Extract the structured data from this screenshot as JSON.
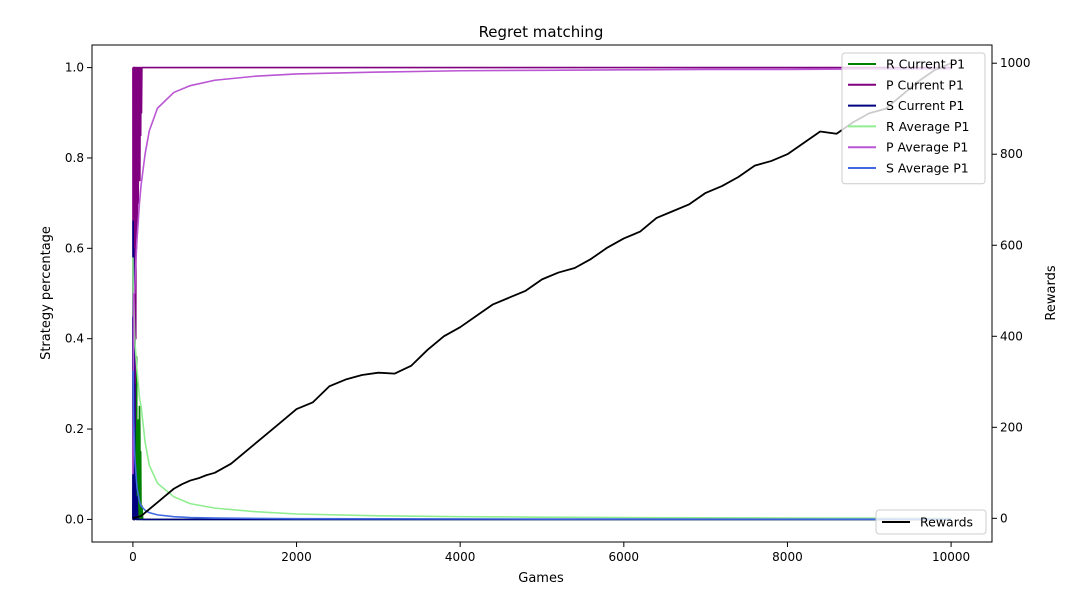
{
  "chart_data": {
    "type": "line",
    "title": "Regret matching",
    "xlabel": "Games",
    "ylabel_left": "Strategy percentage",
    "ylabel_right": "Rewards",
    "xlim": [
      -500,
      10500
    ],
    "ylim_left": [
      -0.05,
      1.05
    ],
    "ylim_right": [
      -52,
      1040
    ],
    "x_ticks": [
      0,
      2000,
      4000,
      6000,
      8000,
      10000
    ],
    "y_left_ticks": [
      0.0,
      0.2,
      0.4,
      0.6,
      0.8,
      1.0
    ],
    "y_right_ticks": [
      0,
      200,
      400,
      600,
      800,
      1000
    ],
    "grid": false,
    "legend_left_axis": "top-right",
    "legend_right_axis": "bottom-right",
    "series": [
      {
        "name": "R Current P1",
        "axis": "left",
        "color": "#008000",
        "x": [
          0,
          5,
          10,
          15,
          20,
          25,
          30,
          35,
          40,
          45,
          50,
          55,
          60,
          65,
          70,
          75,
          80,
          85,
          90,
          95,
          100,
          110,
          120,
          140,
          200,
          500,
          1000,
          10000
        ],
        "y": [
          0,
          0.12,
          0.0,
          0.2,
          0.0,
          0.33,
          0.05,
          0.18,
          0.0,
          0.36,
          0.0,
          0.2,
          0.0,
          0.22,
          0.1,
          0.0,
          0.25,
          0.2,
          0.0,
          0.15,
          0.0,
          0.03,
          0.0,
          0.0,
          0.0,
          0.0,
          0.0,
          0.0
        ]
      },
      {
        "name": "P Current P1",
        "axis": "left",
        "color": "#800080",
        "x": [
          0,
          3,
          6,
          9,
          12,
          15,
          18,
          21,
          24,
          27,
          30,
          35,
          40,
          45,
          50,
          55,
          60,
          65,
          70,
          75,
          80,
          85,
          90,
          95,
          100,
          105,
          110,
          120,
          200,
          1000,
          10000
        ],
        "y": [
          1.0,
          0.0,
          1.0,
          0.0,
          1.0,
          0.3,
          1.0,
          0.0,
          1.0,
          0.2,
          1.0,
          0.4,
          1.0,
          0.6,
          1.0,
          0.64,
          1.0,
          0.7,
          1.0,
          0.8,
          1.0,
          0.75,
          1.0,
          0.85,
          1.0,
          0.9,
          1.0,
          1.0,
          1.0,
          1.0,
          1.0
        ]
      },
      {
        "name": "S Current P1",
        "axis": "left",
        "color": "#000080",
        "x": [
          0,
          3,
          6,
          9,
          12,
          15,
          18,
          21,
          24,
          30,
          40,
          50,
          60,
          80,
          100,
          1000,
          10000
        ],
        "y": [
          0.0,
          0.66,
          0.0,
          0.6,
          0.0,
          0.45,
          0.0,
          0.3,
          0.0,
          0.12,
          0.0,
          0.05,
          0.0,
          0.0,
          0.0,
          0.0,
          0.0
        ]
      },
      {
        "name": "R Average P1",
        "axis": "left",
        "color": "#90EE90",
        "x": [
          0,
          5,
          10,
          20,
          30,
          50,
          80,
          100,
          150,
          200,
          300,
          500,
          700,
          1000,
          1500,
          2000,
          3000,
          4000,
          5000,
          6000,
          7000,
          8000,
          9000,
          10000
        ],
        "y": [
          0.58,
          0.45,
          0.5,
          0.41,
          0.38,
          0.33,
          0.27,
          0.25,
          0.17,
          0.12,
          0.08,
          0.05,
          0.035,
          0.025,
          0.017,
          0.012,
          0.008,
          0.006,
          0.005,
          0.004,
          0.0035,
          0.003,
          0.0027,
          0.0025
        ]
      },
      {
        "name": "P Average P1",
        "axis": "left",
        "color": "#BA55D3",
        "x": [
          0,
          5,
          10,
          20,
          30,
          50,
          80,
          100,
          150,
          200,
          300,
          500,
          700,
          1000,
          1500,
          2000,
          3000,
          4000,
          5000,
          6000,
          7000,
          8000,
          9000,
          10000
        ],
        "y": [
          0.1,
          0.25,
          0.5,
          0.5,
          0.55,
          0.62,
          0.7,
          0.74,
          0.81,
          0.86,
          0.91,
          0.945,
          0.96,
          0.972,
          0.981,
          0.986,
          0.99,
          0.993,
          0.994,
          0.995,
          0.996,
          0.996,
          0.997,
          0.997
        ]
      },
      {
        "name": "S Average P1",
        "axis": "left",
        "color": "#4169E1",
        "x": [
          0,
          5,
          10,
          20,
          30,
          50,
          80,
          100,
          150,
          200,
          300,
          500,
          700,
          1000,
          2000,
          5000,
          10000
        ],
        "y": [
          0.33,
          0.28,
          0.22,
          0.15,
          0.12,
          0.07,
          0.04,
          0.03,
          0.02,
          0.015,
          0.01,
          0.006,
          0.004,
          0.003,
          0.0015,
          0.0008,
          0.0005
        ]
      },
      {
        "name": "Rewards",
        "axis": "right",
        "color": "#000000",
        "x": [
          0,
          100,
          200,
          300,
          400,
          500,
          600,
          700,
          800,
          900,
          1000,
          1200,
          1400,
          1600,
          1800,
          2000,
          2200,
          2400,
          2600,
          2800,
          3000,
          3200,
          3400,
          3600,
          3800,
          4000,
          4200,
          4400,
          4600,
          4800,
          5000,
          5200,
          5400,
          5600,
          5800,
          6000,
          6200,
          6400,
          6600,
          6800,
          7000,
          7200,
          7400,
          7600,
          7800,
          8000,
          8200,
          8400,
          8600,
          8800,
          9000,
          9200,
          9400,
          9600,
          9800,
          10000
        ],
        "y": [
          0,
          5,
          20,
          35,
          50,
          65,
          75,
          83,
          88,
          95,
          100,
          120,
          150,
          180,
          210,
          240,
          255,
          290,
          305,
          315,
          320,
          318,
          335,
          370,
          400,
          420,
          445,
          470,
          485,
          500,
          525,
          540,
          550,
          570,
          595,
          615,
          630,
          660,
          675,
          690,
          715,
          730,
          750,
          775,
          785,
          800,
          825,
          850,
          845,
          870,
          890,
          900,
          930,
          960,
          985,
          1000
        ]
      }
    ]
  }
}
